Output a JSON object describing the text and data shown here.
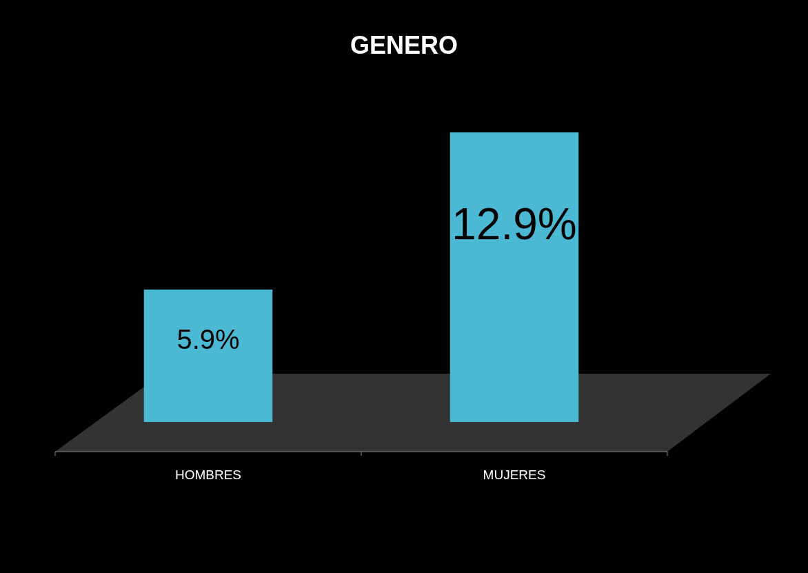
{
  "chart_data": {
    "type": "bar",
    "title": "GENERO",
    "categories": [
      "HOMBRES",
      "MUJERES"
    ],
    "values": [
      5.9,
      12.9
    ],
    "value_labels": [
      "5.9%",
      "12.9%"
    ],
    "color": "#4bb8d4"
  }
}
